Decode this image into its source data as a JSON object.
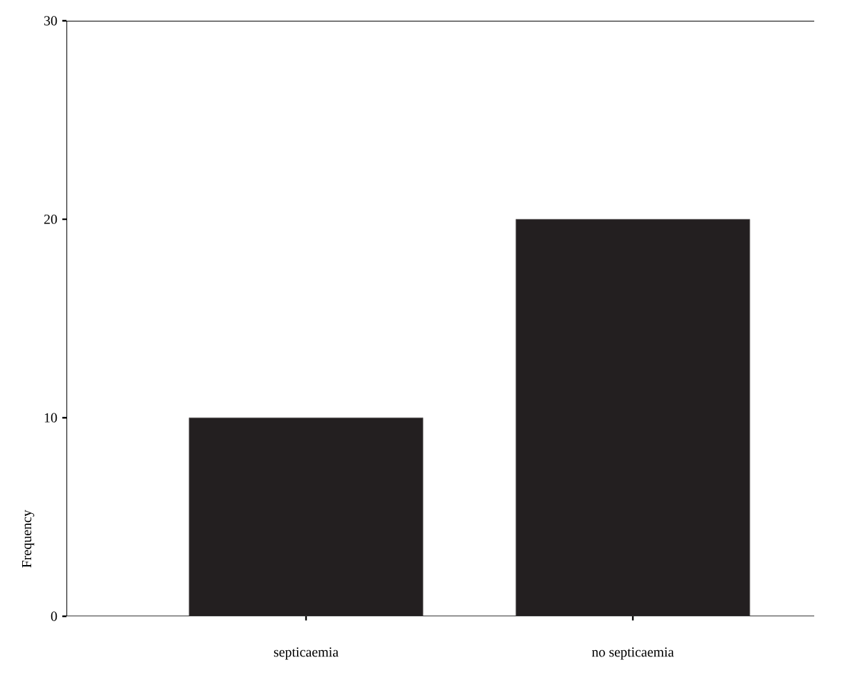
{
  "chart_data": {
    "type": "bar",
    "ylabel": "Frequency",
    "categories": [
      "septicaemia",
      "no septicaemia"
    ],
    "values": [
      10,
      20
    ],
    "color": "#231f20",
    "ylim": [
      0,
      30
    ],
    "yticks": [
      0,
      10,
      20,
      30
    ],
    "grid": false
  }
}
